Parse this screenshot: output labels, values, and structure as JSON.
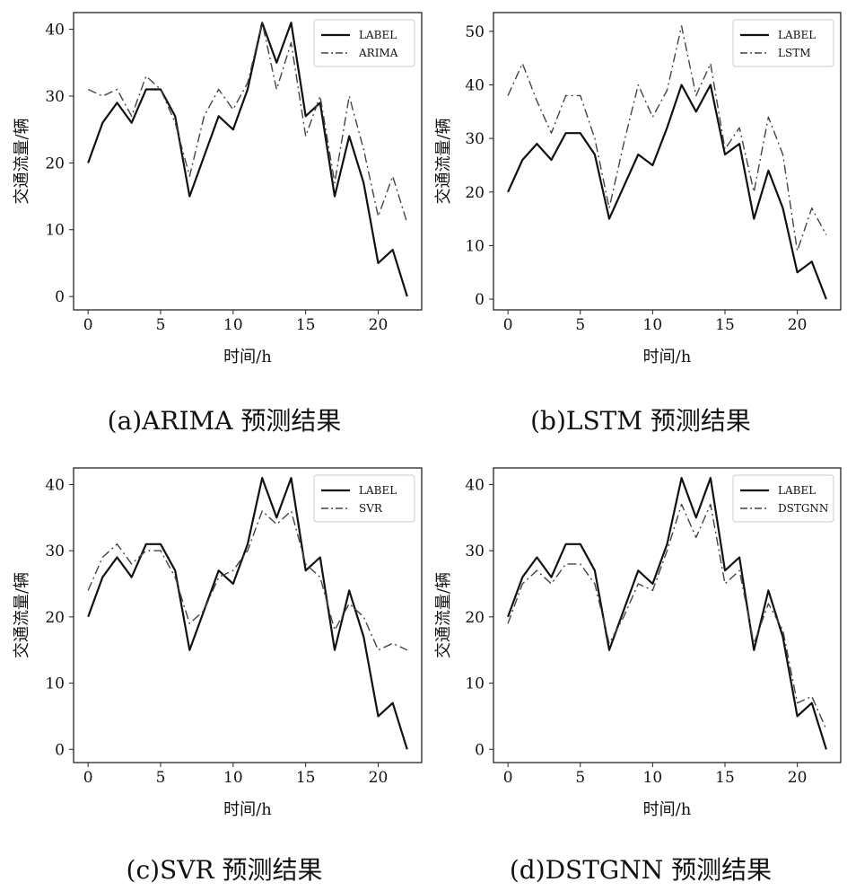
{
  "figure": {
    "ylabel": "交通流量/辆",
    "xlabel": "时间/h"
  },
  "chart_data": [
    {
      "type": "line",
      "caption": "(a)ARIMA 预测结果",
      "xlabel": "时间/h",
      "ylabel": "交通流量/辆",
      "x": [
        0,
        1,
        2,
        3,
        4,
        5,
        6,
        7,
        8,
        9,
        10,
        11,
        12,
        13,
        14,
        15,
        16,
        17,
        18,
        19,
        20,
        21,
        22
      ],
      "xticks": [
        0,
        5,
        10,
        15,
        20
      ],
      "yticks": [
        0,
        10,
        20,
        30,
        40
      ],
      "xlim": [
        -1,
        23
      ],
      "ylim": [
        -2,
        42.5
      ],
      "legend_position": "top-right",
      "grid": false,
      "series": [
        {
          "name": "LABEL",
          "style": "solid",
          "values": [
            20,
            26,
            29,
            26,
            31,
            31,
            27,
            15,
            21,
            27,
            25,
            31,
            41,
            35,
            41,
            27,
            29,
            15,
            24,
            17,
            5,
            7,
            0
          ]
        },
        {
          "name": "ARIMA",
          "style": "dashdot",
          "values": [
            31,
            30,
            31,
            27,
            33,
            31,
            26,
            18,
            27,
            31,
            28,
            32,
            41,
            31,
            38,
            24,
            30,
            17,
            30,
            22,
            12,
            18,
            11
          ]
        }
      ]
    },
    {
      "type": "line",
      "caption": "(b)LSTM 预测结果",
      "xlabel": "时间/h",
      "ylabel": "交通流量/辆",
      "x": [
        0,
        1,
        2,
        3,
        4,
        5,
        6,
        7,
        8,
        9,
        10,
        11,
        12,
        13,
        14,
        15,
        16,
        17,
        18,
        19,
        20,
        21,
        22
      ],
      "xticks": [
        0,
        5,
        10,
        15,
        20
      ],
      "yticks": [
        0,
        10,
        20,
        30,
        40,
        50
      ],
      "xlim": [
        -1,
        23
      ],
      "ylim": [
        -2,
        53.5
      ],
      "legend_position": "top-right",
      "grid": false,
      "series": [
        {
          "name": "LABEL",
          "style": "solid",
          "values": [
            20,
            26,
            29,
            26,
            31,
            31,
            27,
            15,
            21,
            27,
            25,
            32,
            40,
            35,
            40,
            27,
            29,
            15,
            24,
            17,
            5,
            7,
            0
          ]
        },
        {
          "name": "LSTM",
          "style": "dashdot",
          "values": [
            38,
            44,
            37,
            31,
            38,
            38,
            30,
            17,
            29,
            40,
            34,
            39,
            51,
            38,
            44,
            28,
            32,
            20,
            34,
            27,
            9,
            17,
            12
          ]
        }
      ]
    },
    {
      "type": "line",
      "caption": "(c)SVR 预测结果",
      "xlabel": "时间/h",
      "ylabel": "交通流量/辆",
      "x": [
        0,
        1,
        2,
        3,
        4,
        5,
        6,
        7,
        8,
        9,
        10,
        11,
        12,
        13,
        14,
        15,
        16,
        17,
        18,
        19,
        20,
        21,
        22
      ],
      "xticks": [
        0,
        5,
        10,
        15,
        20
      ],
      "yticks": [
        0,
        10,
        20,
        30,
        40
      ],
      "xlim": [
        -1,
        23
      ],
      "ylim": [
        -2,
        42.5
      ],
      "legend_position": "top-right",
      "grid": false,
      "series": [
        {
          "name": "LABEL",
          "style": "solid",
          "values": [
            20,
            26,
            29,
            26,
            31,
            31,
            27,
            15,
            21,
            27,
            25,
            31,
            41,
            35,
            41,
            27,
            29,
            15,
            24,
            17,
            5,
            7,
            0
          ]
        },
        {
          "name": "SVR",
          "style": "dashdot",
          "values": [
            24,
            29,
            31,
            28,
            30,
            30,
            26,
            19,
            21,
            26,
            27,
            30,
            36,
            34,
            36,
            28,
            26,
            18,
            22,
            20,
            15,
            16,
            15
          ]
        }
      ]
    },
    {
      "type": "line",
      "caption": "(d)DSTGNN 预测结果",
      "xlabel": "时间/h",
      "ylabel": "交通流量/辆",
      "x": [
        0,
        1,
        2,
        3,
        4,
        5,
        6,
        7,
        8,
        9,
        10,
        11,
        12,
        13,
        14,
        15,
        16,
        17,
        18,
        19,
        20,
        21,
        22
      ],
      "xticks": [
        0,
        5,
        10,
        15,
        20
      ],
      "yticks": [
        0,
        10,
        20,
        30,
        40
      ],
      "xlim": [
        -1,
        23
      ],
      "ylim": [
        -2,
        42.5
      ],
      "legend_position": "top-right",
      "grid": false,
      "series": [
        {
          "name": "LABEL",
          "style": "solid",
          "values": [
            20,
            26,
            29,
            26,
            31,
            31,
            27,
            15,
            21,
            27,
            25,
            31,
            41,
            35,
            41,
            27,
            29,
            15,
            24,
            17,
            5,
            7,
            0
          ]
        },
        {
          "name": "DSTGNN",
          "style": "dashdot",
          "values": [
            19,
            25,
            27,
            25,
            28,
            28,
            25,
            16,
            20,
            25,
            24,
            30,
            37,
            32,
            37,
            25,
            27,
            16,
            22,
            18,
            7,
            8,
            3
          ]
        }
      ]
    }
  ]
}
